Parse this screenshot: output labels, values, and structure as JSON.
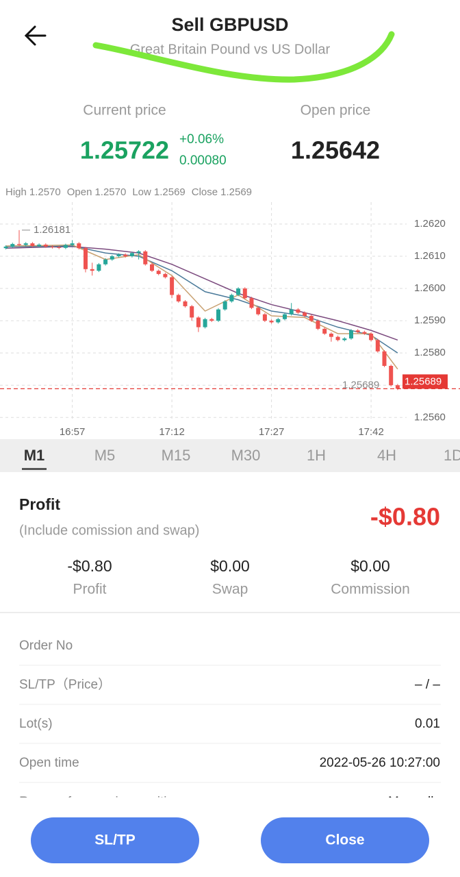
{
  "header": {
    "title": "Sell GBPUSD",
    "subtitle": "Great Britain Pound vs US Dollar"
  },
  "prices": {
    "current_label": "Current price",
    "current": "1.25722",
    "change_pct": "+0.06%",
    "change": "0.00080",
    "open_label": "Open price",
    "open": "1.25642"
  },
  "info": [
    {
      "label": "High",
      "value": "1.2570"
    },
    {
      "label": "Open",
      "value": "1.2570"
    },
    {
      "label": "Low",
      "value": "1.2569"
    },
    {
      "label": "Close",
      "value": "1.2569"
    }
  ],
  "chart_data": {
    "type": "candlestick",
    "open": [
      1.26125,
      1.2613,
      1.26138,
      1.26135,
      1.2614,
      1.26132,
      1.26136,
      1.2613,
      1.26128,
      1.26126,
      1.26135,
      1.2614,
      1.26125,
      1.2606,
      1.26055,
      1.26075,
      1.2609,
      1.261,
      1.26105,
      1.261,
      1.2611,
      1.26115,
      1.26075,
      1.26055,
      1.26045,
      1.26035,
      1.2598,
      1.2596,
      1.25945,
      1.2591,
      1.2588,
      1.25905,
      1.259,
      1.25935,
      1.2596,
      1.2598,
      1.26,
      1.2597,
      1.2594,
      1.2592,
      1.259,
      1.25895,
      1.25905,
      1.2592,
      1.25935,
      1.25925,
      1.25915,
      1.259,
      1.25875,
      1.2586,
      1.2585,
      1.2584,
      1.25845,
      1.2587,
      1.25865,
      1.2586,
      1.2584,
      1.25805,
      1.2576,
      1.257
    ],
    "high": [
      1.26134,
      1.26142,
      1.26181,
      1.26144,
      1.26144,
      1.2614,
      1.2614,
      1.26134,
      1.26132,
      1.26139,
      1.2615,
      1.26144,
      1.26129,
      1.2608,
      1.26079,
      1.26094,
      1.26104,
      1.26109,
      1.26109,
      1.26114,
      1.26119,
      1.26119,
      1.26079,
      1.26059,
      1.26049,
      1.26039,
      1.25984,
      1.25964,
      1.25949,
      1.25914,
      1.25909,
      1.25909,
      1.25939,
      1.25964,
      1.25984,
      1.26004,
      1.26004,
      1.25974,
      1.25944,
      1.25924,
      1.25904,
      1.25909,
      1.25924,
      1.25955,
      1.25939,
      1.25929,
      1.25919,
      1.25904,
      1.25879,
      1.25864,
      1.25854,
      1.25849,
      1.25874,
      1.25874,
      1.25869,
      1.25864,
      1.25844,
      1.25809,
      1.25764,
      1.25704
    ],
    "low": [
      1.26121,
      1.26126,
      1.26131,
      1.26131,
      1.26128,
      1.26128,
      1.26126,
      1.26124,
      1.26122,
      1.26122,
      1.26131,
      1.26121,
      1.2605,
      1.2604,
      1.26051,
      1.26071,
      1.26086,
      1.26096,
      1.26096,
      1.26096,
      1.2609,
      1.26071,
      1.26051,
      1.26041,
      1.26031,
      1.2597,
      1.25956,
      1.25941,
      1.259,
      1.25865,
      1.25876,
      1.25896,
      1.25896,
      1.25931,
      1.25956,
      1.25976,
      1.25966,
      1.25936,
      1.25916,
      1.25896,
      1.25891,
      1.25891,
      1.25901,
      1.25916,
      1.25921,
      1.25911,
      1.25896,
      1.25871,
      1.25856,
      1.25835,
      1.25836,
      1.25836,
      1.25841,
      1.25861,
      1.25856,
      1.25836,
      1.25801,
      1.25756,
      1.25696,
      1.25685
    ],
    "close": [
      1.2613,
      1.26138,
      1.26135,
      1.2614,
      1.26132,
      1.26136,
      1.2613,
      1.26128,
      1.26126,
      1.26135,
      1.2614,
      1.26125,
      1.2606,
      1.26055,
      1.26075,
      1.2609,
      1.261,
      1.26105,
      1.261,
      1.2611,
      1.26115,
      1.26075,
      1.26055,
      1.26045,
      1.26035,
      1.2598,
      1.2596,
      1.25945,
      1.2591,
      1.2588,
      1.25905,
      1.259,
      1.25935,
      1.2596,
      1.2598,
      1.26,
      1.2597,
      1.2594,
      1.2592,
      1.259,
      1.25895,
      1.25905,
      1.2592,
      1.25935,
      1.25925,
      1.25915,
      1.259,
      1.25875,
      1.2586,
      1.2585,
      1.2584,
      1.25845,
      1.2587,
      1.25865,
      1.2586,
      1.2584,
      1.25805,
      1.2576,
      1.257,
      1.25689
    ],
    "up_color": "#26a69a",
    "down_color": "#ef5350",
    "xlim": [
      -0.5,
      59.5
    ],
    "xticks": [
      {
        "value": 10,
        "label": "16:57"
      },
      {
        "value": 25,
        "label": "17:12"
      },
      {
        "value": 40,
        "label": "17:27"
      },
      {
        "value": 55,
        "label": "17:42"
      }
    ],
    "ylim": [
      1.2559,
      1.2627
    ],
    "yticks": [
      {
        "value": 1.262,
        "label": "1.2620"
      },
      {
        "value": 1.261,
        "label": "1.2610"
      },
      {
        "value": 1.26,
        "label": "1.2600"
      },
      {
        "value": 1.259,
        "label": "1.2590"
      },
      {
        "value": 1.258,
        "label": "1.2580"
      },
      {
        "value": 1.257,
        "label": "1.2570"
      },
      {
        "value": 1.256,
        "label": "1.2560"
      }
    ],
    "grid": true,
    "max_annotation": 1.26181,
    "last_price": 1.25689,
    "moving_averages": {
      "x": [
        0,
        5,
        10,
        15,
        20,
        25,
        30,
        35,
        40,
        45,
        50,
        55,
        59
      ],
      "series": [
        {
          "color": "#7b4a7e",
          "values": [
            1.26125,
            1.26128,
            1.2613,
            1.26122,
            1.2611,
            1.26075,
            1.2603,
            1.25985,
            1.2595,
            1.25925,
            1.259,
            1.2587,
            1.2584
          ]
        },
        {
          "color": "#4a7a9a",
          "values": [
            1.2613,
            1.2613,
            1.26132,
            1.2611,
            1.261,
            1.26055,
            1.2599,
            1.25965,
            1.2593,
            1.25915,
            1.2588,
            1.25855,
            1.258
          ]
        },
        {
          "color": "#c8a070",
          "values": [
            1.26132,
            1.26133,
            1.26135,
            1.2609,
            1.26105,
            1.2604,
            1.2593,
            1.2598,
            1.25915,
            1.2591,
            1.2586,
            1.2586,
            1.2575
          ]
        }
      ]
    }
  },
  "timeframes": [
    "M1",
    "M5",
    "M15",
    "M30",
    "1H",
    "4H",
    "1D"
  ],
  "selected_timeframe": 0,
  "profit": {
    "title": "Profit",
    "note": "(Include comission and swap)",
    "total": "-$0.80",
    "stats": [
      {
        "value": "-$0.80",
        "label": "Profit"
      },
      {
        "value": "$0.00",
        "label": "Swap"
      },
      {
        "value": "$0.00",
        "label": "Commission"
      }
    ]
  },
  "details": [
    {
      "label": "Order No"
    },
    {
      "label": "SL/TP（Price）",
      "value": "– / –"
    },
    {
      "label": "Lot(s)",
      "value": "0.01"
    },
    {
      "label": "Open time",
      "value": "2022-05-26 10:27:00"
    },
    {
      "label": "Reason for opening position",
      "value": "Manually"
    }
  ],
  "buttons": [
    "SL/TP",
    "Close"
  ]
}
